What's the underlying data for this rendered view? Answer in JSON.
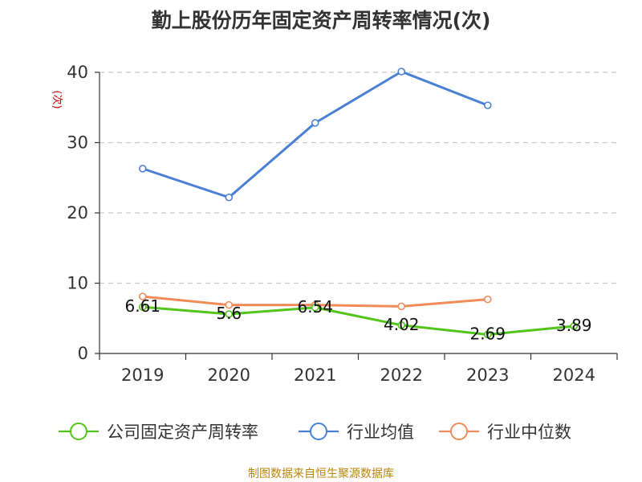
{
  "chart_data": {
    "type": "line",
    "title": "勤上股份历年固定资产周转率情况(次)",
    "ylabel": "(次)",
    "xlabel": "",
    "categories": [
      "2019",
      "2020",
      "2021",
      "2022",
      "2023",
      "2024"
    ],
    "ylim": [
      0,
      40
    ],
    "yticks": [
      0,
      10,
      20,
      30,
      40
    ],
    "grid": true,
    "legend_position": "bottom",
    "series": [
      {
        "name": "公司固定资产周转率",
        "color": "#52c41a",
        "values": [
          6.61,
          5.6,
          6.54,
          4.02,
          2.69,
          3.89
        ],
        "labels": [
          "6.61",
          "5.6",
          "6.54",
          "4.02",
          "2.69",
          "3.89"
        ]
      },
      {
        "name": "行业均值",
        "color": "#4a7fd6",
        "values": [
          26.3,
          22.2,
          32.8,
          40.1,
          35.3,
          null
        ]
      },
      {
        "name": "行业中位数",
        "color": "#f08c5a",
        "values": [
          8.1,
          6.9,
          6.9,
          6.7,
          7.7,
          null
        ]
      }
    ]
  },
  "source": "制图数据来自恒生聚源数据库"
}
